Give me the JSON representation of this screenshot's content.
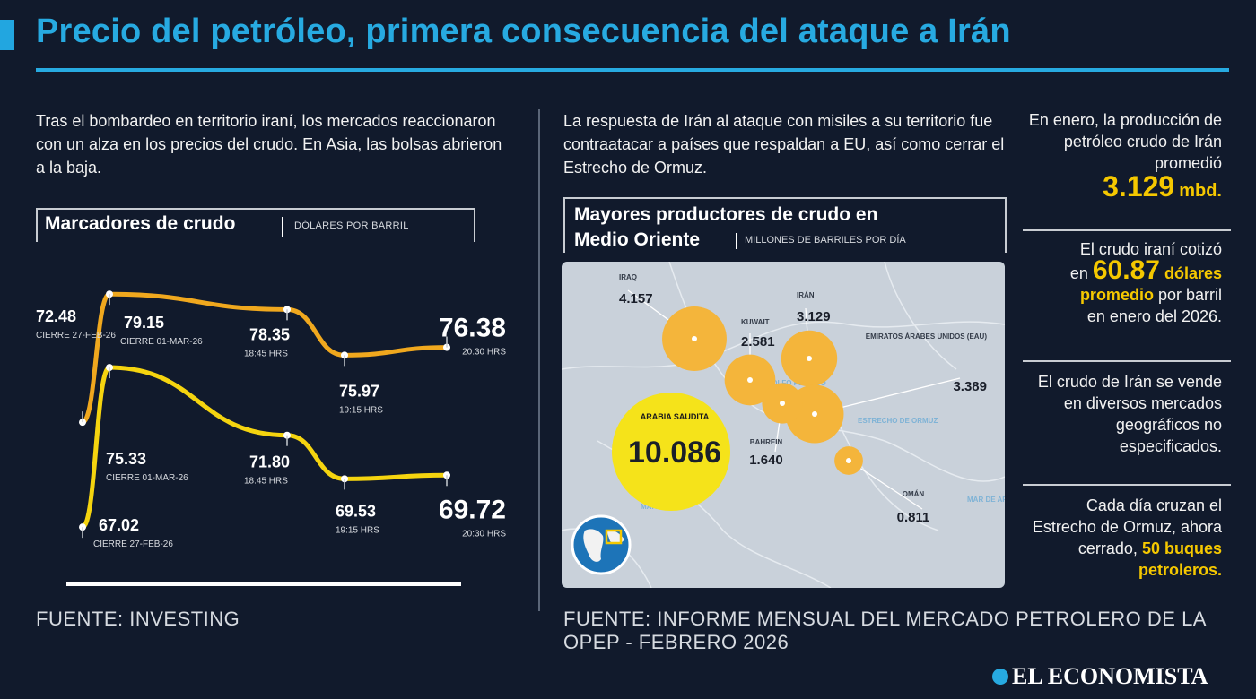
{
  "title": "Precio del petróleo, primera consecuencia del ataque a Irán",
  "left_intro": "Tras el bombardeo en territorio iraní, los mercados reaccionaron con un alza en los precios del crudo. En Asia, las bolsas abrieron a la baja.",
  "mid_intro": "La respuesta de Irán al ataque con misiles a su territorio fue contraatacar a países que respaldan a EU, así como cerrar el Estrecho de Ormuz.",
  "colors": {
    "accent": "#27aae1",
    "orange": "#f0a81e",
    "yellow": "#f5d40f",
    "background": "#111a2c"
  },
  "chart_data": [
    {
      "type": "line",
      "title": "Marcadores de crudo",
      "unit": "DÓLARES POR BARRIL",
      "series": [
        {
          "color": "#f0a81e",
          "points": [
            {
              "value": 72.48,
              "label": "72.48",
              "time": "CIERRE 27-FEB-26"
            },
            {
              "value": 79.15,
              "label": "79.15",
              "time": "CIERRE 01-MAR-26"
            },
            {
              "value": 78.35,
              "label": "78.35",
              "time": "18:45 HRS"
            },
            {
              "value": 75.97,
              "label": "75.97",
              "time": "19:15 HRS"
            },
            {
              "value": 76.38,
              "label": "76.38",
              "time": "20:30 HRS"
            }
          ]
        },
        {
          "color": "#f5d40f",
          "points": [
            {
              "value": 67.02,
              "label": "67.02",
              "time": "CIERRE 27-FEB-26"
            },
            {
              "value": 75.33,
              "label": "75.33",
              "time": "CIERRE 01-MAR-26"
            },
            {
              "value": 71.8,
              "label": "71.80",
              "time": "18:45 HRS"
            },
            {
              "value": 69.53,
              "label": "69.53",
              "time": "19:15 HRS"
            },
            {
              "value": 69.72,
              "label": "69.72",
              "time": "20:30 HRS"
            }
          ]
        }
      ]
    },
    {
      "type": "bubble",
      "title_line1": "Mayores productores de crudo en",
      "title_line2": "Medio Oriente",
      "unit": "MILLONES DE BARRILES POR DÍA",
      "items": [
        {
          "name": "IRAQ",
          "value": 4.157,
          "label": "4.157"
        },
        {
          "name": "KUWAIT",
          "value": 2.581,
          "label": "2.581"
        },
        {
          "name": "IRÁN",
          "value": 3.129,
          "label": "3.129"
        },
        {
          "name": "EMIRATOS ÁRABES UNIDOS (EAU)",
          "value": 3.389,
          "label": "3.389"
        },
        {
          "name": "ARABIA SAUDITA",
          "value": 10.086,
          "label": "10.086"
        },
        {
          "name": "BAHREIN",
          "value": 1.64,
          "label": "1.640"
        },
        {
          "name": "OMÁN",
          "value": 0.811,
          "label": "0.811"
        }
      ]
    }
  ],
  "map_labels": {
    "gulf": "GOLFO PÉRSICO",
    "hormuz": "ESTRECHO DE ORMUZ",
    "red_sea": "MAR ROJO",
    "arabian_sea": "MAR DE ARABIA"
  },
  "side": {
    "p1_text": "En enero, la producción de petróleo crudo de Irán promedió",
    "p1_value": "3.129",
    "p1_unit": "mbd.",
    "p2_pre": "El crudo iraní cotizó",
    "p2_en": "en",
    "p2_value": "60.87",
    "p2_hl_text": "dólares",
    "p2_hl_text2": "promedio",
    "p2_post": "por barril",
    "p2_post2": "en enero del 2026.",
    "p3_text": "El crudo de Irán se vende en diversos mercados geográficos no especificados.",
    "p4_text": "Cada día cruzan el Estrecho de Ormuz, ahora cerrado,",
    "p4_hl": "50",
    "p4_hl2": "buques petroleros."
  },
  "source_left": "FUENTE: INVESTING",
  "source_right": "FUENTE: INFORME MENSUAL DEL MERCADO PETROLERO DE LA OPEP - FEBRERO 2026",
  "logo": "EL ECONOMISTA"
}
